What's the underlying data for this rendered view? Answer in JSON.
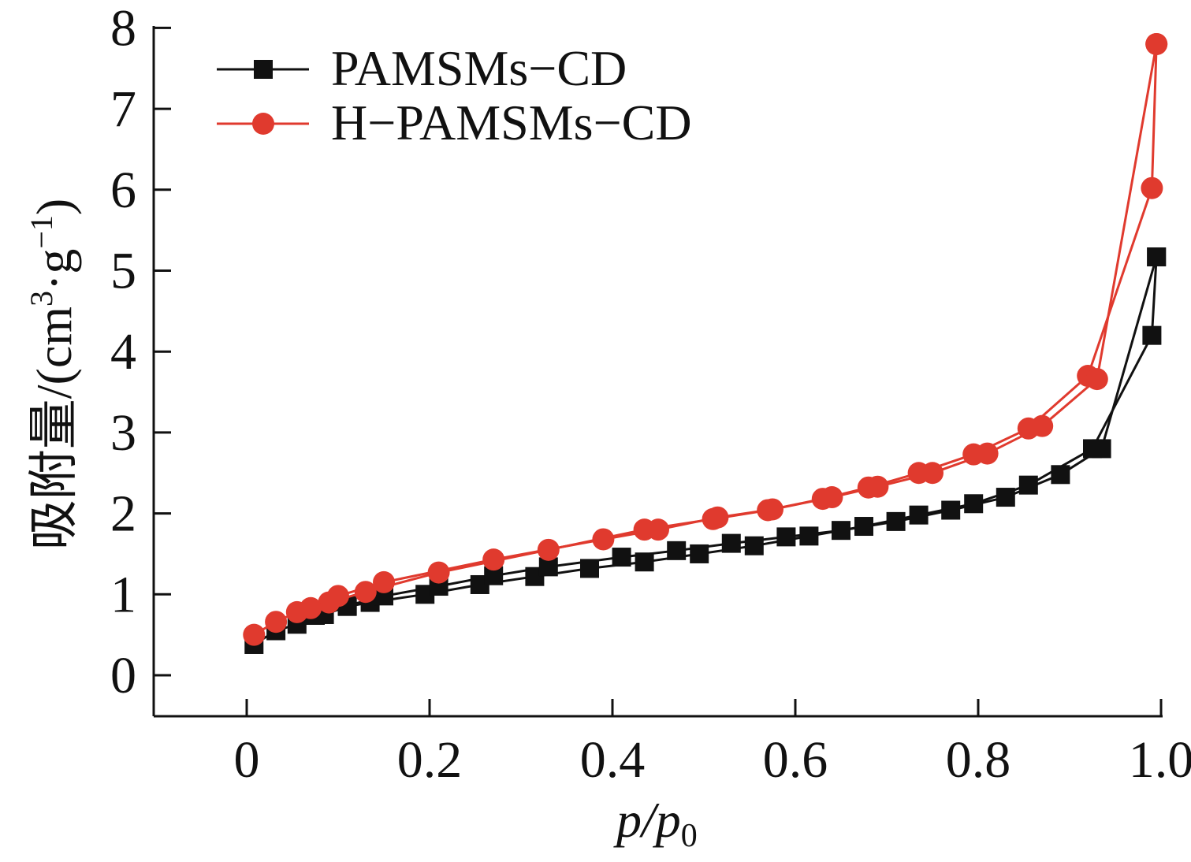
{
  "chart_data": {
    "type": "line",
    "xlabel": {
      "main": "p/p",
      "sub": "0"
    },
    "ylabel": {
      "prefix": "吸附量/(cm",
      "sup1": "3",
      "mid": "·g",
      "sup2": "−1",
      "suffix": ")"
    },
    "xlim": [
      -0.1,
      1.0
    ],
    "ylim": [
      -0.5,
      8
    ],
    "xticks": [
      0,
      0.2,
      0.4,
      0.6,
      0.8,
      1.0
    ],
    "xtick_labels": [
      "0",
      "0.2",
      "0.4",
      "0.6",
      "0.8",
      "1.0"
    ],
    "yticks": [
      0,
      1,
      2,
      3,
      4,
      5,
      6,
      7,
      8
    ],
    "ytick_labels": [
      "0",
      "1",
      "2",
      "3",
      "4",
      "5",
      "6",
      "7",
      "8"
    ],
    "grid": false,
    "legend_position": "top-left",
    "series": [
      {
        "name": "PAMSMs−CD",
        "color": "#111111",
        "marker": "square",
        "adsorption": {
          "x": [
            0.008,
            0.032,
            0.055,
            0.085,
            0.11,
            0.135,
            0.195,
            0.255,
            0.315,
            0.375,
            0.435,
            0.495,
            0.555,
            0.615,
            0.675,
            0.735,
            0.795,
            0.855,
            0.925,
            0.99,
            0.995
          ],
          "y": [
            0.38,
            0.55,
            0.63,
            0.75,
            0.85,
            0.9,
            1.0,
            1.12,
            1.22,
            1.32,
            1.4,
            1.5,
            1.6,
            1.72,
            1.84,
            1.98,
            2.12,
            2.35,
            2.8,
            4.2,
            5.17
          ]
        },
        "desorption": {
          "x": [
            0.995,
            0.935,
            0.89,
            0.83,
            0.77,
            0.71,
            0.65,
            0.59,
            0.53,
            0.47,
            0.41,
            0.33,
            0.27,
            0.21,
            0.15,
            0.11,
            0.075
          ],
          "y": [
            5.17,
            2.8,
            2.48,
            2.2,
            2.04,
            1.9,
            1.79,
            1.71,
            1.63,
            1.54,
            1.46,
            1.34,
            1.23,
            1.1,
            0.98,
            0.86,
            0.74
          ]
        }
      },
      {
        "name": "H−PAMSMs−CD",
        "color": "#e03a2e",
        "marker": "circle",
        "adsorption": {
          "x": [
            0.008,
            0.032,
            0.055,
            0.09,
            0.13,
            0.21,
            0.33,
            0.435,
            0.51,
            0.57,
            0.63,
            0.68,
            0.735,
            0.795,
            0.855,
            0.92,
            0.99,
            0.995
          ],
          "y": [
            0.5,
            0.66,
            0.78,
            0.9,
            1.03,
            1.27,
            1.55,
            1.8,
            1.93,
            2.04,
            2.18,
            2.32,
            2.5,
            2.73,
            3.05,
            3.7,
            6.02,
            7.8
          ]
        },
        "desorption": {
          "x": [
            0.995,
            0.93,
            0.87,
            0.81,
            0.75,
            0.69,
            0.64,
            0.575,
            0.515,
            0.45,
            0.39,
            0.27,
            0.15,
            0.1,
            0.07
          ],
          "y": [
            7.8,
            3.66,
            3.08,
            2.74,
            2.5,
            2.33,
            2.2,
            2.05,
            1.95,
            1.8,
            1.68,
            1.43,
            1.15,
            0.98,
            0.83
          ]
        }
      }
    ]
  }
}
